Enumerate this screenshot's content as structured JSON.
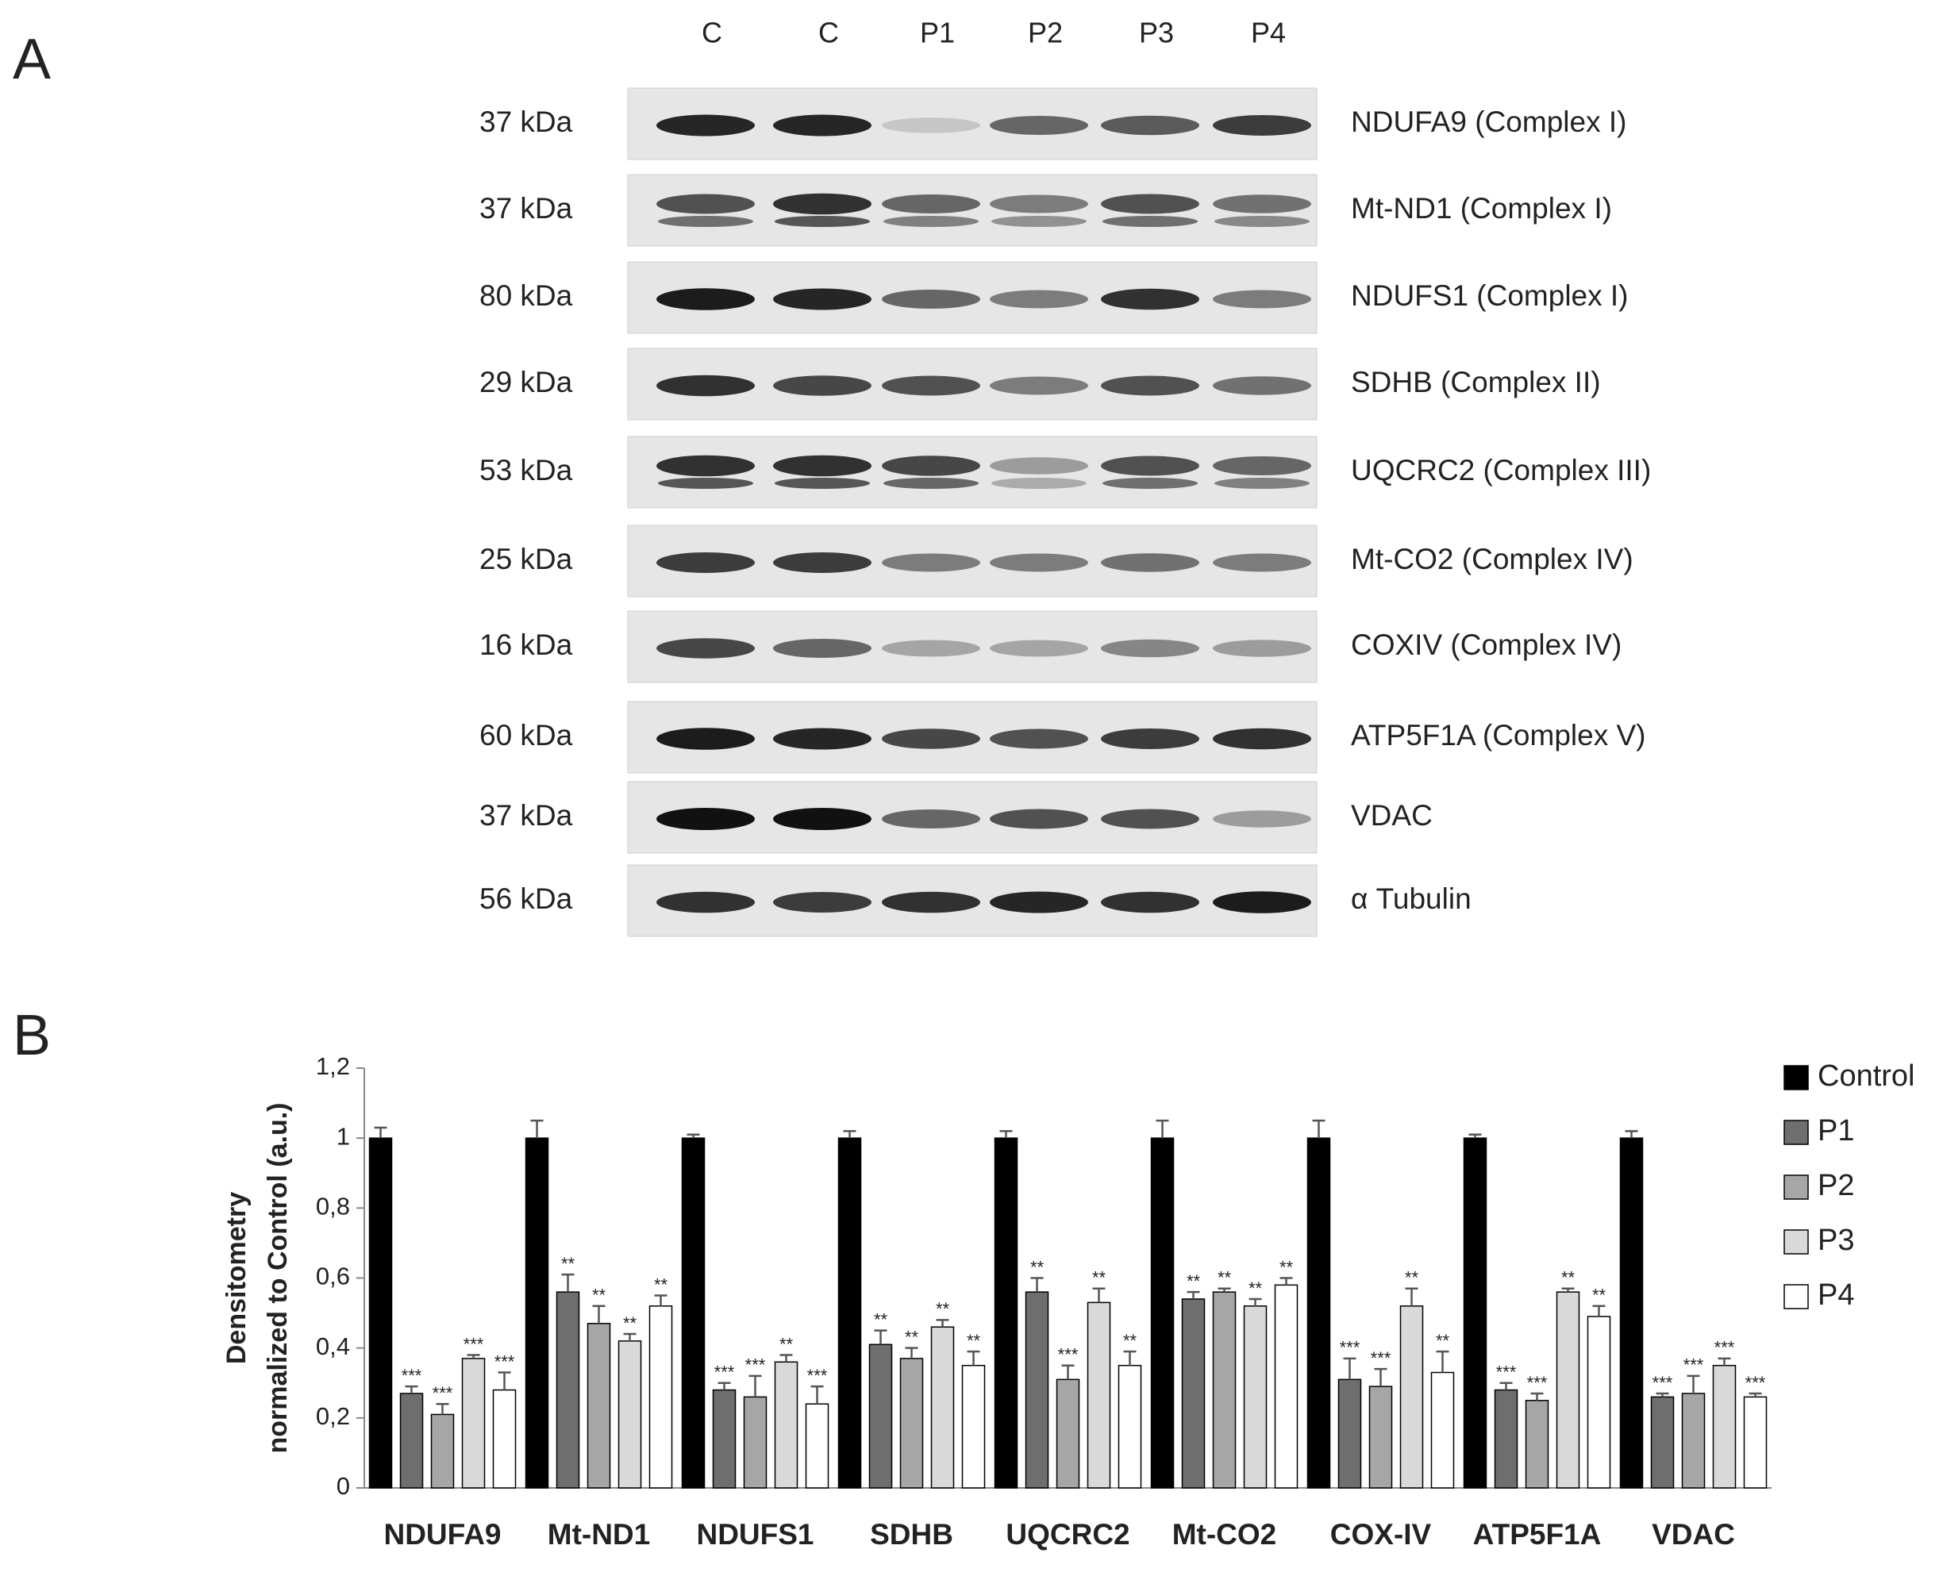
{
  "panel_a": {
    "label": "A",
    "lanes": [
      "C",
      "C",
      "P1",
      "P2",
      "P3",
      "P4"
    ],
    "rows": [
      {
        "kda": "37 kDa",
        "protein": "NDUFA9 (Complex I)"
      },
      {
        "kda": "37 kDa",
        "protein": "Mt-ND1 (Complex I)"
      },
      {
        "kda": "80 kDa",
        "protein": "NDUFS1 (Complex I)"
      },
      {
        "kda": "29 kDa",
        "protein": "SDHB (Complex II)"
      },
      {
        "kda": "53 kDa",
        "protein": "UQCRC2 (Complex III)"
      },
      {
        "kda": "25 kDa",
        "protein": "Mt-CO2 (Complex IV)"
      },
      {
        "kda": "16 kDa",
        "protein": "COXIV (Complex IV)"
      },
      {
        "kda": "60 kDa",
        "protein": "ATP5F1A (Complex V)"
      },
      {
        "kda": "37 kDa",
        "protein": "VDAC"
      },
      {
        "kda": "56 kDa",
        "protein": "α Tubulin"
      }
    ]
  },
  "panel_b_label": "B",
  "chart_data": {
    "type": "bar",
    "ylabel": [
      "Densitometry",
      "normalized to Control (a.u.)"
    ],
    "categories": [
      "NDUFA9",
      "Mt-ND1",
      "NDUFS1",
      "SDHB",
      "UQCRC2",
      "Mt-CO2",
      "COX-IV",
      "ATP5F1A",
      "VDAC"
    ],
    "series": [
      {
        "name": "Control",
        "color": "#000000",
        "values": [
          1,
          1,
          1,
          1,
          1,
          1,
          1,
          1,
          1
        ],
        "errors": [
          0.03,
          0.05,
          0.01,
          0.02,
          0.02,
          0.05,
          0.05,
          0.01,
          0.02
        ]
      },
      {
        "name": "P1",
        "color": "#6e6e6e",
        "values": [
          0.27,
          0.56,
          0.28,
          0.41,
          0.56,
          0.54,
          0.31,
          0.28,
          0.26
        ],
        "errors": [
          0.02,
          0.05,
          0.02,
          0.04,
          0.04,
          0.02,
          0.06,
          0.02,
          0.01
        ],
        "annotations": [
          "***",
          "**",
          "***",
          "**",
          "**",
          "**",
          "***",
          "***",
          "***"
        ]
      },
      {
        "name": "P2",
        "color": "#a6a6a6",
        "values": [
          0.21,
          0.47,
          0.26,
          0.37,
          0.31,
          0.56,
          0.29,
          0.25,
          0.27
        ],
        "errors": [
          0.03,
          0.05,
          0.06,
          0.03,
          0.04,
          0.01,
          0.05,
          0.02,
          0.05
        ],
        "annotations": [
          "***",
          "**",
          "***",
          "**",
          "***",
          "**",
          "***",
          "***",
          "***"
        ]
      },
      {
        "name": "P3",
        "color": "#d9d9d9",
        "values": [
          0.37,
          0.42,
          0.36,
          0.46,
          0.53,
          0.52,
          0.52,
          0.56,
          0.35
        ],
        "errors": [
          0.01,
          0.02,
          0.02,
          0.02,
          0.04,
          0.02,
          0.05,
          0.01,
          0.02
        ],
        "annotations": [
          "***",
          "**",
          "**",
          "**",
          "**",
          "**",
          "**",
          "**",
          "***"
        ]
      },
      {
        "name": "P4",
        "color": "#ffffff",
        "values": [
          0.28,
          0.52,
          0.24,
          0.35,
          0.35,
          0.58,
          0.33,
          0.49,
          0.26
        ],
        "errors": [
          0.05,
          0.03,
          0.05,
          0.04,
          0.04,
          0.02,
          0.06,
          0.03,
          0.01
        ],
        "annotations": [
          "***",
          "**",
          "***",
          "**",
          "**",
          "**",
          "**",
          "**",
          "***"
        ]
      }
    ],
    "ylim": [
      0,
      1.2
    ],
    "yticks": [
      0,
      {
        "value": 0.2,
        "label": "0,2"
      },
      {
        "value": 0.4,
        "label": "0,4"
      },
      {
        "value": 0.6,
        "label": "0,6"
      },
      {
        "value": 0.8,
        "label": "0,8"
      },
      1,
      {
        "value": 1.2,
        "label": "1,2"
      }
    ],
    "legend": "right"
  }
}
